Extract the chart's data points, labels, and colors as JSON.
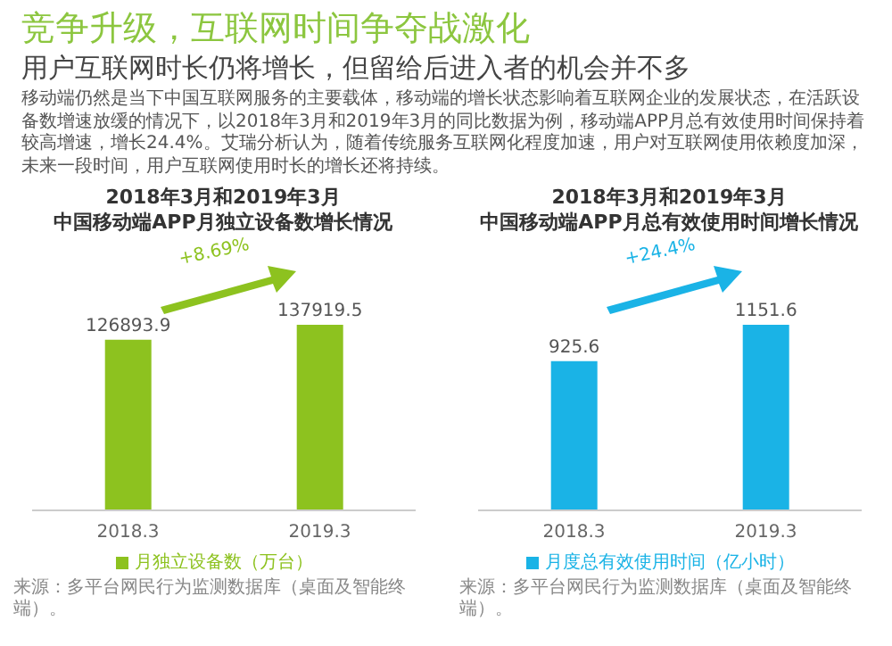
{
  "chart_data": [
    {
      "type": "other",
      "title": "竞争升级，互联网时间争夺战激化",
      "subtitle": "用户互联网时长仍将增长，但留给后进入者的机会并不多",
      "annotations": [
        "移动端仍然是当下中国互联网服务的主要载体，移动端的增长状态影响着互联网企业的发展状态，在活跃设备数增速放缓的情况下，以2018年3月和2019年3月的同比数据为例，移动端APP月总有效使用时间保持着较高增速，增长24.4%。艾瑞分析认为，随着传统服务互联网化程度加速，用户对互联网使用依赖度加深，未来一段时间，用户互联网使用时长的增长还将持续。"
      ]
    },
    {
      "type": "bar",
      "title": "2018年3月和2019年3月",
      "subtitle": "中国移动端APP月独立设备数增长情况",
      "categories": [
        "2018.3",
        "2019.3"
      ],
      "series": [
        {
          "name": "月独立设备数（万台）",
          "color": "#8dc21f",
          "values": [
            126893.9,
            137919.5
          ]
        }
      ],
      "data_labels": true,
      "legend": "bottom",
      "annotations": [
        "+8.69%",
        "来源：多平台网民行为监测数据库（桌面及智能终端）。"
      ]
    },
    {
      "type": "bar",
      "title": "2018年3月和2019年3月",
      "subtitle": "中国移动端APP月总有效使用时间增长情况",
      "categories": [
        "2018.3",
        "2019.3"
      ],
      "series": [
        {
          "name": "月度总有效使用时间（亿小时）",
          "color": "#1ab3e6",
          "values": [
            925.6,
            1151.6
          ]
        }
      ],
      "data_labels": true,
      "legend": "bottom",
      "annotations": [
        "+24.4%",
        "来源：多平台网民行为监测数据库（桌面及智能终端）。"
      ]
    }
  ]
}
